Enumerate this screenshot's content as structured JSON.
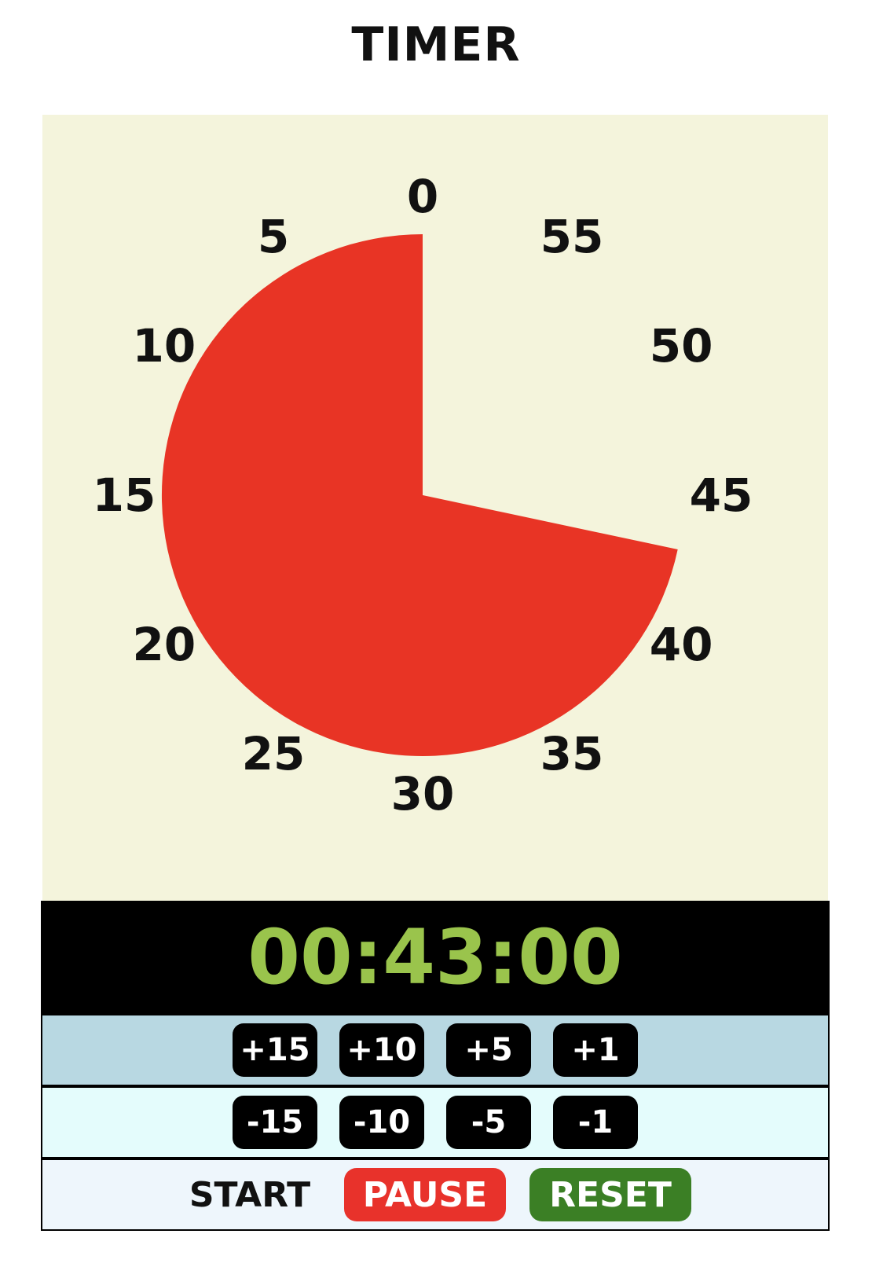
{
  "app": {
    "title": "TIMER"
  },
  "dial": {
    "labels": [
      "0",
      "5",
      "10",
      "15",
      "20",
      "25",
      "30",
      "35",
      "40",
      "45",
      "50",
      "55"
    ],
    "remaining_minutes": 43,
    "total_minutes": 60,
    "wedge_color": "#e83425",
    "background_color": "#f4f4dc"
  },
  "display": {
    "time": "00:43:00",
    "color": "#9ac44c"
  },
  "add_buttons": [
    "+15",
    "+10",
    "+5",
    "+1"
  ],
  "subtract_buttons": [
    "-15",
    "-10",
    "-5",
    "-1"
  ],
  "controls": {
    "start_label": "START",
    "pause_label": "PAUSE",
    "reset_label": "RESET"
  }
}
